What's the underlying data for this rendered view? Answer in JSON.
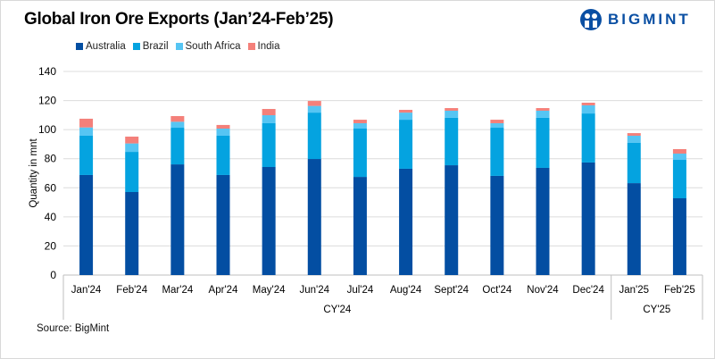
{
  "brand": {
    "name": "BIGMINT",
    "color": "#0a4fa3"
  },
  "source": "Source: BigMint",
  "chart_data": {
    "type": "bar",
    "stacked": true,
    "title": "Global Iron Ore Exports (Jan’24-Feb’25)",
    "ylabel": "Quantity in mnt",
    "xlabel": "",
    "ylim": [
      0,
      140
    ],
    "yticks": [
      0,
      20,
      40,
      60,
      80,
      100,
      120,
      140
    ],
    "grid": true,
    "legend_position": "top-left",
    "categories": [
      "Jan'24",
      "Feb'24",
      "Mar'24",
      "Apr'24",
      "May'24",
      "Jun'24",
      "Jul'24",
      "Aug'24",
      "Sept'24",
      "Oct'24",
      "Nov'24",
      "Dec'24",
      "Jan'25",
      "Feb'25"
    ],
    "groups": [
      {
        "label": "CY'24",
        "count": 12
      },
      {
        "label": "CY'25",
        "count": 2
      }
    ],
    "series": [
      {
        "name": "Australia",
        "color": "#034ea2",
        "values": [
          68.8,
          57.1,
          76.1,
          68.8,
          74.3,
          79.8,
          67.5,
          73.1,
          75.5,
          68.2,
          73.7,
          77.4,
          63.2,
          52.8
        ]
      },
      {
        "name": "Brazil",
        "color": "#04a3e0",
        "values": [
          27.0,
          27.6,
          25.2,
          27.0,
          30.1,
          31.9,
          33.2,
          33.7,
          32.6,
          33.1,
          34.4,
          33.7,
          27.7,
          26.4
        ]
      },
      {
        "name": "South Africa",
        "color": "#56c5f3",
        "values": [
          5.7,
          5.8,
          4.1,
          4.9,
          5.5,
          4.6,
          3.7,
          4.9,
          4.9,
          3.1,
          4.9,
          5.6,
          4.9,
          4.3
        ]
      },
      {
        "name": "India",
        "color": "#f4807a",
        "values": [
          6.0,
          4.7,
          3.9,
          2.5,
          4.3,
          3.4,
          2.4,
          1.9,
          1.8,
          2.4,
          1.8,
          1.8,
          1.8,
          3.1
        ]
      }
    ]
  }
}
